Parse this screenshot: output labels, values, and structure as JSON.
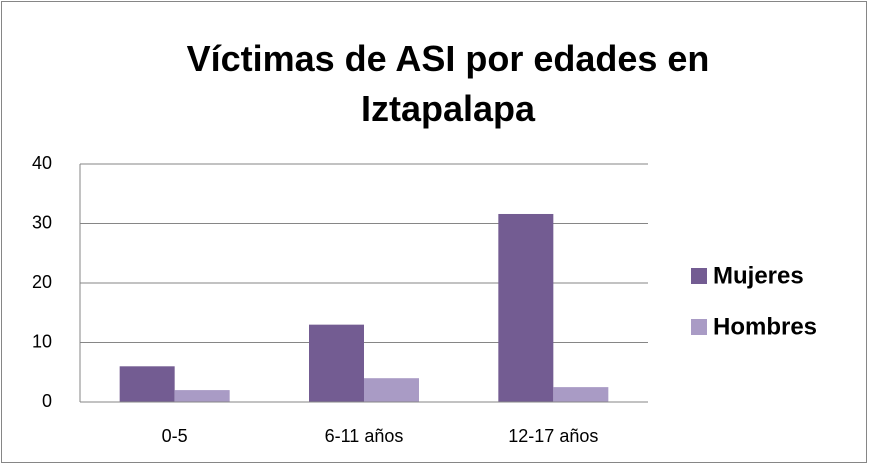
{
  "chart_data": {
    "type": "bar",
    "title": "Víctimas de ASI por edades en Iztapalapa",
    "categories": [
      "0-5",
      "6-11 años",
      "12-17 años"
    ],
    "series": [
      {
        "name": "Mujeres",
        "color": "#735c92",
        "values": [
          6,
          13,
          31.6
        ]
      },
      {
        "name": "Hombres",
        "color": "#a99bc5",
        "values": [
          2,
          4,
          2.5
        ]
      }
    ],
    "ylim": [
      0,
      40
    ],
    "yticks": [
      0,
      10,
      20,
      30,
      40
    ],
    "grid": true,
    "legend": "right"
  }
}
